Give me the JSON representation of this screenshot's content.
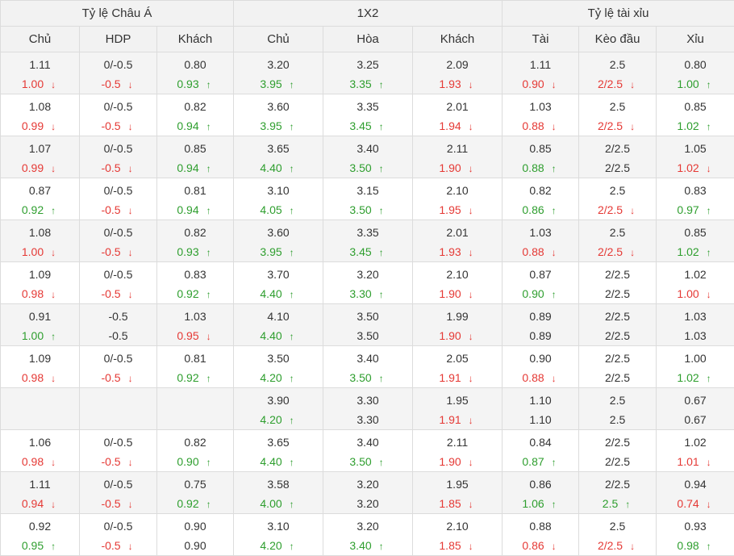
{
  "headers": {
    "groups": [
      "Tỷ lệ Châu Á",
      "1X2",
      "Tỷ lệ tài xỉu"
    ],
    "columns": [
      "Chủ",
      "HDP",
      "Khách",
      "Chủ",
      "Hòa",
      "Khách",
      "Tài",
      "Kèo đầu",
      "Xỉu"
    ]
  },
  "colors": {
    "up": "#2e9e2e",
    "down": "#e53935",
    "neutral": "#333333",
    "header_bg": "#f2f2f2",
    "alt_row_bg": "#f4f4f4"
  },
  "icons": {
    "up": "up-arrow-icon",
    "down": "down-arrow-icon"
  },
  "rows": [
    {
      "cells": [
        {
          "top": "1.11",
          "bottom": "1.00",
          "trend": "down"
        },
        {
          "top": "0/-0.5",
          "bottom": "-0.5",
          "trend": "down"
        },
        {
          "top": "0.80",
          "bottom": "0.93",
          "trend": "up"
        },
        {
          "top": "3.20",
          "bottom": "3.95",
          "trend": "up"
        },
        {
          "top": "3.25",
          "bottom": "3.35",
          "trend": "up"
        },
        {
          "top": "2.09",
          "bottom": "1.93",
          "trend": "down"
        },
        {
          "top": "1.11",
          "bottom": "0.90",
          "trend": "down"
        },
        {
          "top": "2.5",
          "bottom": "2/2.5",
          "trend": "down"
        },
        {
          "top": "0.80",
          "bottom": "1.00",
          "trend": "up"
        }
      ]
    },
    {
      "cells": [
        {
          "top": "1.08",
          "bottom": "0.99",
          "trend": "down"
        },
        {
          "top": "0/-0.5",
          "bottom": "-0.5",
          "trend": "down"
        },
        {
          "top": "0.82",
          "bottom": "0.94",
          "trend": "up"
        },
        {
          "top": "3.60",
          "bottom": "3.95",
          "trend": "up"
        },
        {
          "top": "3.35",
          "bottom": "3.45",
          "trend": "up"
        },
        {
          "top": "2.01",
          "bottom": "1.94",
          "trend": "down"
        },
        {
          "top": "1.03",
          "bottom": "0.88",
          "trend": "down"
        },
        {
          "top": "2.5",
          "bottom": "2/2.5",
          "trend": "down"
        },
        {
          "top": "0.85",
          "bottom": "1.02",
          "trend": "up"
        }
      ]
    },
    {
      "cells": [
        {
          "top": "1.07",
          "bottom": "0.99",
          "trend": "down"
        },
        {
          "top": "0/-0.5",
          "bottom": "-0.5",
          "trend": "down"
        },
        {
          "top": "0.85",
          "bottom": "0.94",
          "trend": "up"
        },
        {
          "top": "3.65",
          "bottom": "4.40",
          "trend": "up"
        },
        {
          "top": "3.40",
          "bottom": "3.50",
          "trend": "up"
        },
        {
          "top": "2.11",
          "bottom": "1.90",
          "trend": "down"
        },
        {
          "top": "0.85",
          "bottom": "0.88",
          "trend": "up"
        },
        {
          "top": "2/2.5",
          "bottom": "2/2.5",
          "trend": "none"
        },
        {
          "top": "1.05",
          "bottom": "1.02",
          "trend": "down"
        }
      ]
    },
    {
      "cells": [
        {
          "top": "0.87",
          "bottom": "0.92",
          "trend": "up"
        },
        {
          "top": "0/-0.5",
          "bottom": "-0.5",
          "trend": "down"
        },
        {
          "top": "0.81",
          "bottom": "0.94",
          "trend": "up"
        },
        {
          "top": "3.10",
          "bottom": "4.05",
          "trend": "up"
        },
        {
          "top": "3.15",
          "bottom": "3.50",
          "trend": "up"
        },
        {
          "top": "2.10",
          "bottom": "1.95",
          "trend": "down"
        },
        {
          "top": "0.82",
          "bottom": "0.86",
          "trend": "up"
        },
        {
          "top": "2.5",
          "bottom": "2/2.5",
          "trend": "down"
        },
        {
          "top": "0.83",
          "bottom": "0.97",
          "trend": "up"
        }
      ]
    },
    {
      "cells": [
        {
          "top": "1.08",
          "bottom": "1.00",
          "trend": "down"
        },
        {
          "top": "0/-0.5",
          "bottom": "-0.5",
          "trend": "down"
        },
        {
          "top": "0.82",
          "bottom": "0.93",
          "trend": "up"
        },
        {
          "top": "3.60",
          "bottom": "3.95",
          "trend": "up"
        },
        {
          "top": "3.35",
          "bottom": "3.45",
          "trend": "up"
        },
        {
          "top": "2.01",
          "bottom": "1.93",
          "trend": "down"
        },
        {
          "top": "1.03",
          "bottom": "0.88",
          "trend": "down"
        },
        {
          "top": "2.5",
          "bottom": "2/2.5",
          "trend": "down"
        },
        {
          "top": "0.85",
          "bottom": "1.02",
          "trend": "up"
        }
      ]
    },
    {
      "cells": [
        {
          "top": "1.09",
          "bottom": "0.98",
          "trend": "down"
        },
        {
          "top": "0/-0.5",
          "bottom": "-0.5",
          "trend": "down"
        },
        {
          "top": "0.83",
          "bottom": "0.92",
          "trend": "up"
        },
        {
          "top": "3.70",
          "bottom": "4.40",
          "trend": "up"
        },
        {
          "top": "3.20",
          "bottom": "3.30",
          "trend": "up"
        },
        {
          "top": "2.10",
          "bottom": "1.90",
          "trend": "down"
        },
        {
          "top": "0.87",
          "bottom": "0.90",
          "trend": "up"
        },
        {
          "top": "2/2.5",
          "bottom": "2/2.5",
          "trend": "none"
        },
        {
          "top": "1.02",
          "bottom": "1.00",
          "trend": "down"
        }
      ]
    },
    {
      "cells": [
        {
          "top": "0.91",
          "bottom": "1.00",
          "trend": "up"
        },
        {
          "top": "-0.5",
          "bottom": "-0.5",
          "trend": "none"
        },
        {
          "top": "1.03",
          "bottom": "0.95",
          "trend": "down"
        },
        {
          "top": "4.10",
          "bottom": "4.40",
          "trend": "up"
        },
        {
          "top": "3.50",
          "bottom": "3.50",
          "trend": "none"
        },
        {
          "top": "1.99",
          "bottom": "1.90",
          "trend": "down"
        },
        {
          "top": "0.89",
          "bottom": "0.89",
          "trend": "none"
        },
        {
          "top": "2/2.5",
          "bottom": "2/2.5",
          "trend": "none"
        },
        {
          "top": "1.03",
          "bottom": "1.03",
          "trend": "none"
        }
      ]
    },
    {
      "cells": [
        {
          "top": "1.09",
          "bottom": "0.98",
          "trend": "down"
        },
        {
          "top": "0/-0.5",
          "bottom": "-0.5",
          "trend": "down"
        },
        {
          "top": "0.81",
          "bottom": "0.92",
          "trend": "up"
        },
        {
          "top": "3.50",
          "bottom": "4.20",
          "trend": "up"
        },
        {
          "top": "3.40",
          "bottom": "3.50",
          "trend": "up"
        },
        {
          "top": "2.05",
          "bottom": "1.91",
          "trend": "down"
        },
        {
          "top": "0.90",
          "bottom": "0.88",
          "trend": "down"
        },
        {
          "top": "2/2.5",
          "bottom": "2/2.5",
          "trend": "none"
        },
        {
          "top": "1.00",
          "bottom": "1.02",
          "trend": "up"
        }
      ]
    },
    {
      "cells": [
        {
          "top": "",
          "bottom": "",
          "trend": "none"
        },
        {
          "top": "",
          "bottom": "",
          "trend": "none"
        },
        {
          "top": "",
          "bottom": "",
          "trend": "none"
        },
        {
          "top": "3.90",
          "bottom": "4.20",
          "trend": "up"
        },
        {
          "top": "3.30",
          "bottom": "3.30",
          "trend": "none"
        },
        {
          "top": "1.95",
          "bottom": "1.91",
          "trend": "down"
        },
        {
          "top": "1.10",
          "bottom": "1.10",
          "trend": "none"
        },
        {
          "top": "2.5",
          "bottom": "2.5",
          "trend": "none"
        },
        {
          "top": "0.67",
          "bottom": "0.67",
          "trend": "none"
        }
      ]
    },
    {
      "cells": [
        {
          "top": "1.06",
          "bottom": "0.98",
          "trend": "down"
        },
        {
          "top": "0/-0.5",
          "bottom": "-0.5",
          "trend": "down"
        },
        {
          "top": "0.82",
          "bottom": "0.90",
          "trend": "up"
        },
        {
          "top": "3.65",
          "bottom": "4.40",
          "trend": "up"
        },
        {
          "top": "3.40",
          "bottom": "3.50",
          "trend": "up"
        },
        {
          "top": "2.11",
          "bottom": "1.90",
          "trend": "down"
        },
        {
          "top": "0.84",
          "bottom": "0.87",
          "trend": "up"
        },
        {
          "top": "2/2.5",
          "bottom": "2/2.5",
          "trend": "none"
        },
        {
          "top": "1.02",
          "bottom": "1.01",
          "trend": "down"
        }
      ]
    },
    {
      "cells": [
        {
          "top": "1.11",
          "bottom": "0.94",
          "trend": "down"
        },
        {
          "top": "0/-0.5",
          "bottom": "-0.5",
          "trend": "down"
        },
        {
          "top": "0.75",
          "bottom": "0.92",
          "trend": "up"
        },
        {
          "top": "3.58",
          "bottom": "4.00",
          "trend": "up"
        },
        {
          "top": "3.20",
          "bottom": "3.20",
          "trend": "none"
        },
        {
          "top": "1.95",
          "bottom": "1.85",
          "trend": "down"
        },
        {
          "top": "0.86",
          "bottom": "1.06",
          "trend": "up"
        },
        {
          "top": "2/2.5",
          "bottom": "2.5",
          "trend": "up"
        },
        {
          "top": "0.94",
          "bottom": "0.74",
          "trend": "down"
        }
      ]
    },
    {
      "cells": [
        {
          "top": "0.92",
          "bottom": "0.95",
          "trend": "up"
        },
        {
          "top": "0/-0.5",
          "bottom": "-0.5",
          "trend": "down"
        },
        {
          "top": "0.90",
          "bottom": "0.90",
          "trend": "none"
        },
        {
          "top": "3.10",
          "bottom": "4.20",
          "trend": "up"
        },
        {
          "top": "3.20",
          "bottom": "3.40",
          "trend": "up"
        },
        {
          "top": "2.10",
          "bottom": "1.85",
          "trend": "down"
        },
        {
          "top": "0.88",
          "bottom": "0.86",
          "trend": "down"
        },
        {
          "top": "2.5",
          "bottom": "2/2.5",
          "trend": "down"
        },
        {
          "top": "0.93",
          "bottom": "0.98",
          "trend": "up"
        }
      ]
    }
  ]
}
